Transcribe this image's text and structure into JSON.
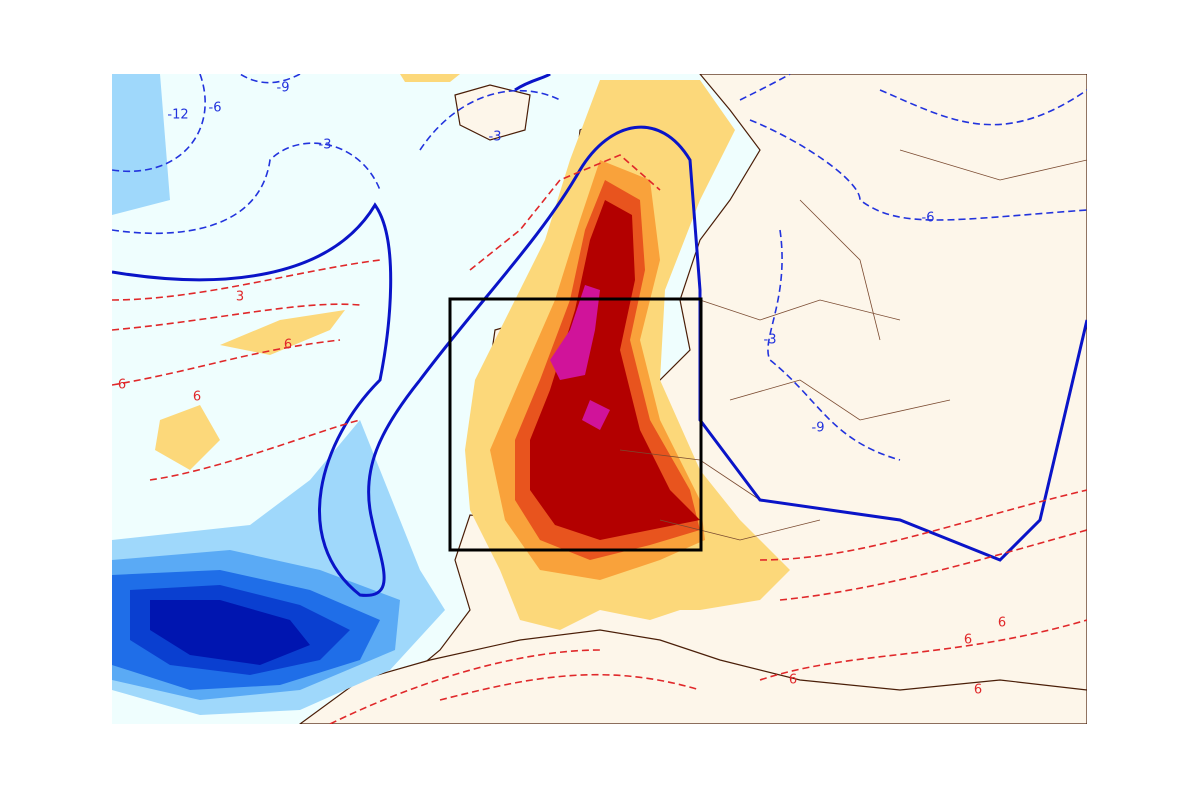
{
  "contour_labels": [
    "-9",
    "-6",
    "-12",
    "-3",
    "-3",
    "3",
    "6",
    "6",
    "6",
    "-3",
    "-6",
    "-9",
    "6",
    "6",
    "6",
    "6"
  ]
}
